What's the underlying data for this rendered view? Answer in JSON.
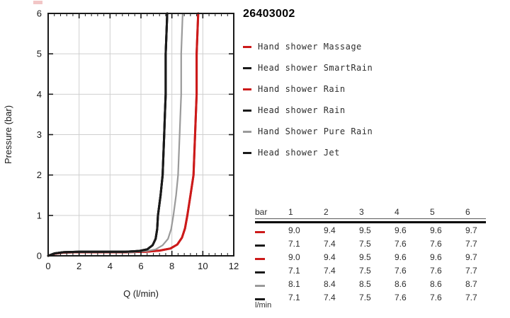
{
  "product_code": "26403002",
  "colors": {
    "red": "#cc1a1a",
    "black": "#1a1a1a",
    "gray": "#9a9a9a",
    "grid": "#cfcfcf",
    "axis": "#1a1a1a",
    "text": "#2e2e2e"
  },
  "legend": {
    "items": [
      {
        "label": "Hand shower Massage",
        "color": "red"
      },
      {
        "label": "Head shower SmartRain",
        "color": "black"
      },
      {
        "label": "Hand shower Rain",
        "color": "red"
      },
      {
        "label": "Head shower Rain",
        "color": "black"
      },
      {
        "label": "Hand Shower Pure Rain",
        "color": "gray"
      },
      {
        "label": "Head shower Jet",
        "color": "black"
      }
    ]
  },
  "chart_data": {
    "type": "line",
    "title": "",
    "xlabel": "Q (l/min)",
    "ylabel": "Pressure (bar)",
    "xlim": [
      0,
      12
    ],
    "ylim": [
      0,
      6
    ],
    "x_ticks": [
      0,
      2,
      4,
      6,
      8,
      10,
      12
    ],
    "y_ticks": [
      0,
      1,
      2,
      3,
      4,
      5,
      6
    ],
    "x_minor_step": 0.4,
    "grid": true,
    "legend_position": "right",
    "bar_levels": [
      1,
      2,
      3,
      4,
      5,
      6
    ],
    "series": [
      {
        "name": "Hand shower Massage",
        "color": "red",
        "stroke_width": 3.0,
        "flows_l_min_at_bar": [
          9.0,
          9.4,
          9.5,
          9.6,
          9.6,
          9.7
        ]
      },
      {
        "name": "Head shower SmartRain",
        "color": "black",
        "stroke_width": 3.0,
        "flows_l_min_at_bar": [
          7.1,
          7.4,
          7.5,
          7.6,
          7.6,
          7.7
        ]
      },
      {
        "name": "Hand shower Rain",
        "color": "red",
        "stroke_width": 3.0,
        "flows_l_min_at_bar": [
          9.0,
          9.4,
          9.5,
          9.6,
          9.6,
          9.7
        ]
      },
      {
        "name": "Head shower Rain",
        "color": "black",
        "stroke_width": 3.0,
        "flows_l_min_at_bar": [
          7.1,
          7.4,
          7.5,
          7.6,
          7.6,
          7.7
        ]
      },
      {
        "name": "Hand Shower Pure Rain",
        "color": "gray",
        "stroke_width": 2.2,
        "flows_l_min_at_bar": [
          8.1,
          8.4,
          8.5,
          8.6,
          8.6,
          8.7
        ]
      },
      {
        "name": "Head shower Jet",
        "color": "black",
        "stroke_width": 3.0,
        "flows_l_min_at_bar": [
          7.1,
          7.4,
          7.5,
          7.6,
          7.6,
          7.7
        ]
      }
    ],
    "curve_profiles": {
      "red": [
        [
          0,
          0
        ],
        [
          0.4,
          0.05
        ],
        [
          1,
          0.08
        ],
        [
          2,
          0.09
        ],
        [
          5,
          0.09
        ],
        [
          6.3,
          0.1
        ],
        [
          7.2,
          0.13
        ],
        [
          7.9,
          0.18
        ],
        [
          8.35,
          0.28
        ],
        [
          8.65,
          0.45
        ],
        [
          8.85,
          0.68
        ],
        [
          9.0,
          1
        ],
        [
          9.2,
          1.5
        ],
        [
          9.4,
          2
        ],
        [
          9.45,
          2.5
        ],
        [
          9.5,
          3
        ],
        [
          9.55,
          3.5
        ],
        [
          9.6,
          4
        ],
        [
          9.6,
          5
        ],
        [
          9.7,
          6
        ]
      ],
      "black": [
        [
          0,
          0
        ],
        [
          0.4,
          0.06
        ],
        [
          1,
          0.09
        ],
        [
          2,
          0.1
        ],
        [
          5,
          0.1
        ],
        [
          5.9,
          0.12
        ],
        [
          6.4,
          0.16
        ],
        [
          6.75,
          0.26
        ],
        [
          6.95,
          0.42
        ],
        [
          7.05,
          0.66
        ],
        [
          7.1,
          1
        ],
        [
          7.27,
          1.5
        ],
        [
          7.4,
          2
        ],
        [
          7.45,
          2.5
        ],
        [
          7.5,
          3
        ],
        [
          7.55,
          3.5
        ],
        [
          7.6,
          4
        ],
        [
          7.6,
          5
        ],
        [
          7.7,
          6
        ]
      ],
      "gray": [
        [
          0,
          0
        ],
        [
          0.4,
          0.05
        ],
        [
          1,
          0.08
        ],
        [
          2,
          0.09
        ],
        [
          5.4,
          0.09
        ],
        [
          6.4,
          0.12
        ],
        [
          6.95,
          0.16
        ],
        [
          7.4,
          0.26
        ],
        [
          7.75,
          0.42
        ],
        [
          7.95,
          0.66
        ],
        [
          8.1,
          1
        ],
        [
          8.27,
          1.5
        ],
        [
          8.4,
          2
        ],
        [
          8.45,
          2.5
        ],
        [
          8.5,
          3
        ],
        [
          8.55,
          3.5
        ],
        [
          8.6,
          4
        ],
        [
          8.6,
          5
        ],
        [
          8.7,
          6
        ]
      ]
    }
  },
  "table": {
    "unit_header": "bar",
    "pressure_columns": [
      "1",
      "2",
      "3",
      "4",
      "5",
      "6"
    ],
    "rows": [
      {
        "color": "red",
        "values": [
          "9.0",
          "9.4",
          "9.5",
          "9.6",
          "9.6",
          "9.7"
        ]
      },
      {
        "color": "black",
        "values": [
          "7.1",
          "7.4",
          "7.5",
          "7.6",
          "7.6",
          "7.7"
        ]
      },
      {
        "color": "red",
        "values": [
          "9.0",
          "9.4",
          "9.5",
          "9.6",
          "9.6",
          "9.7"
        ]
      },
      {
        "color": "black",
        "values": [
          "7.1",
          "7.4",
          "7.5",
          "7.6",
          "7.6",
          "7.7"
        ]
      },
      {
        "color": "gray",
        "values": [
          "8.1",
          "8.4",
          "8.5",
          "8.6",
          "8.6",
          "8.7"
        ]
      },
      {
        "color": "black",
        "values": [
          "7.1",
          "7.4",
          "7.5",
          "7.6",
          "7.6",
          "7.7"
        ]
      }
    ],
    "unit_footer": "l/min"
  }
}
